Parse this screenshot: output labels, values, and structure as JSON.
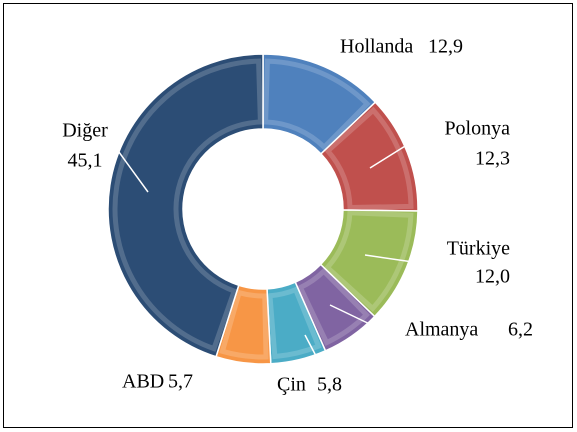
{
  "chart_data": {
    "type": "donut",
    "categories": [
      "Hollanda",
      "Polonya",
      "Türkiye",
      "Almanya",
      "Çin",
      "ABD",
      "Diğer"
    ],
    "values": [
      12.9,
      12.3,
      12.0,
      6.2,
      5.8,
      5.7,
      45.1
    ],
    "value_labels": [
      "12,9",
      "12,3",
      "12,0",
      "6,2",
      "5,8",
      "5,7",
      "45,1"
    ],
    "colors": [
      "#4f81bd",
      "#c0504d",
      "#9bbb59",
      "#8064a2",
      "#4bacc6",
      "#f79646",
      "#2c4d75"
    ]
  }
}
